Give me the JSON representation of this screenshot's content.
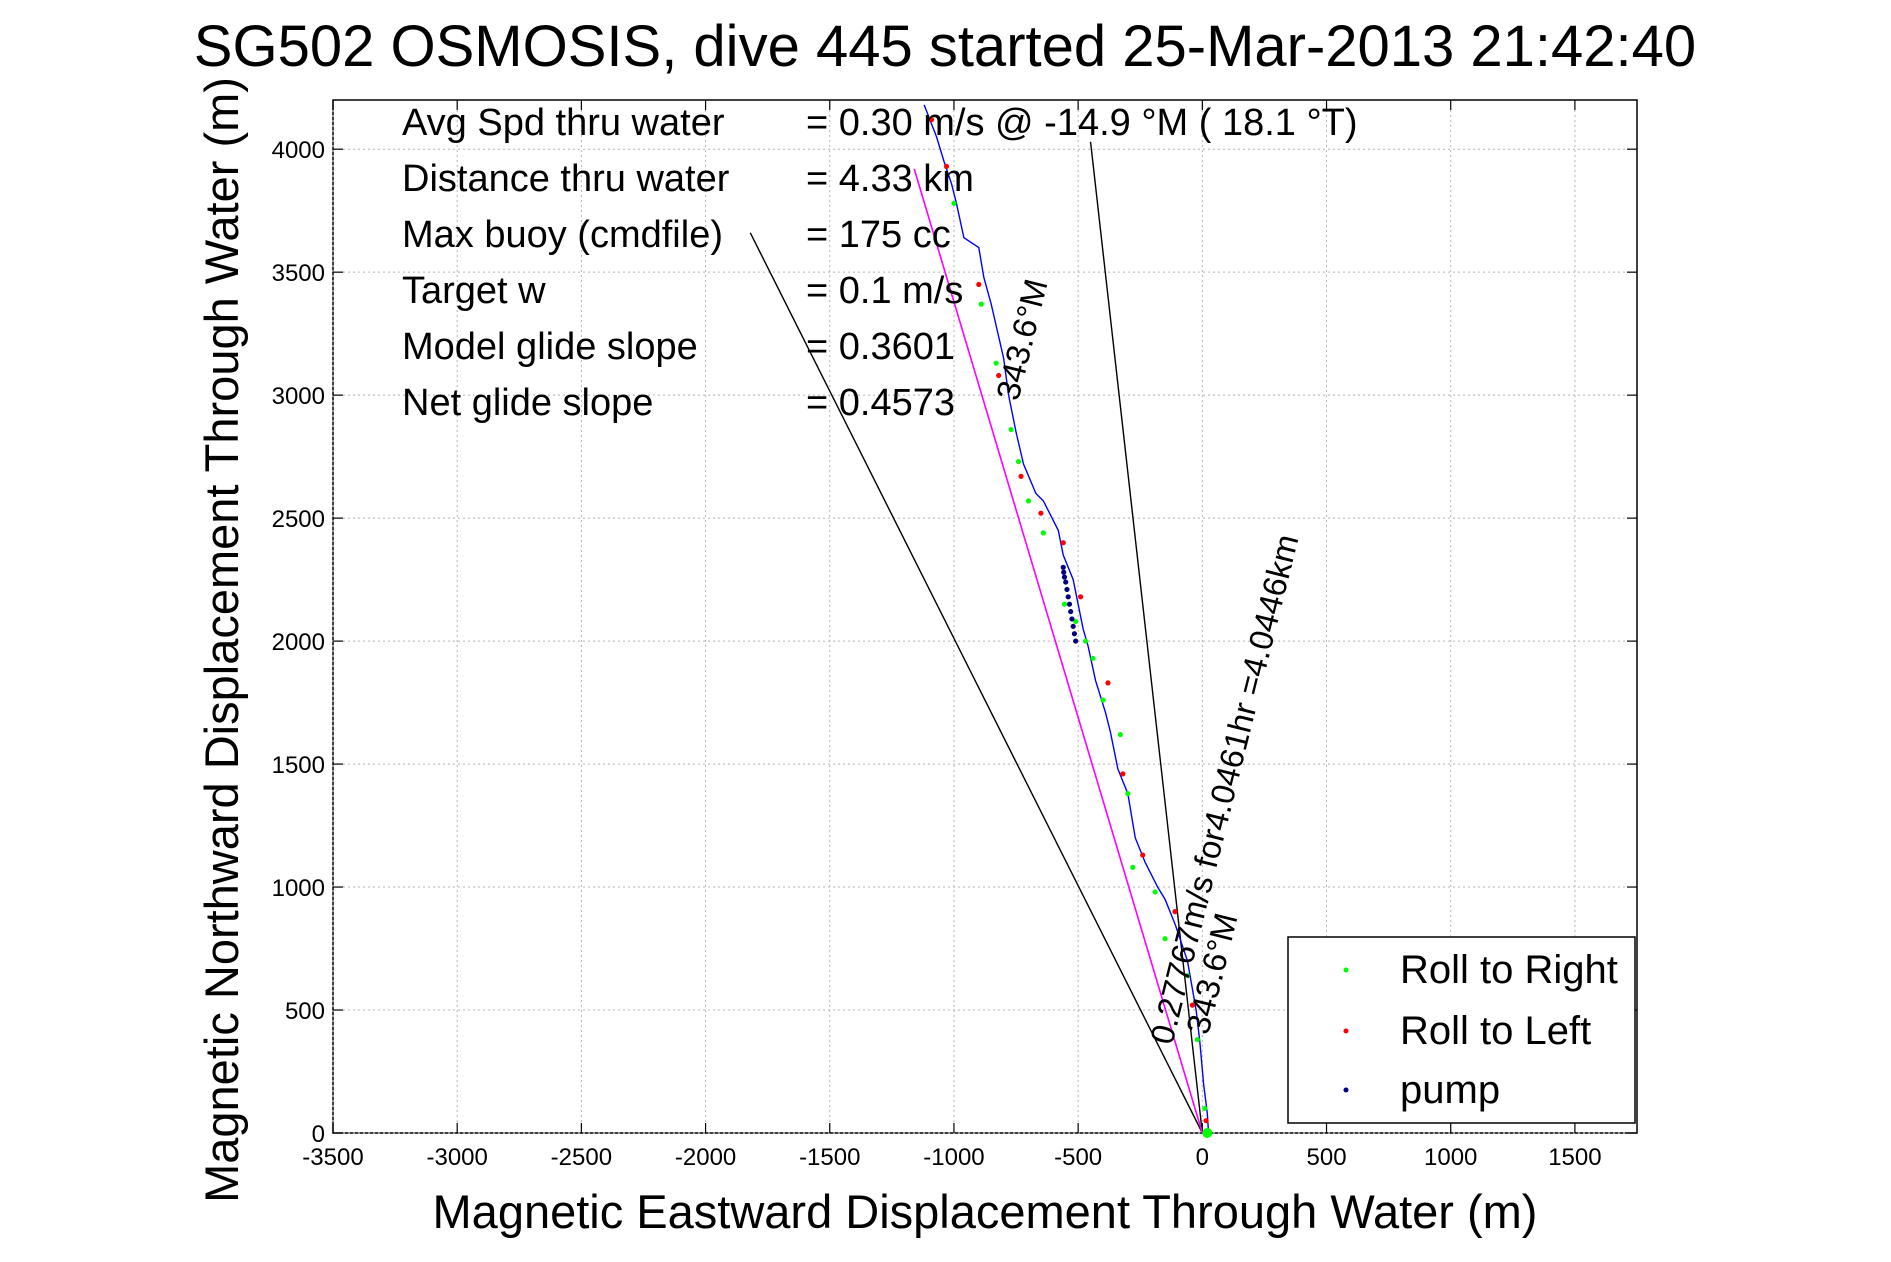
{
  "chart_data": {
    "type": "line",
    "title": "SG502 OSMOSIS, dive 445 started 25-Mar-2013 21:42:40",
    "xlabel": "Magnetic Eastward Displacement Through Water (m)",
    "ylabel": "Magnetic Northward Displacement Through Water (m)",
    "xlim": [
      -3500,
      1750
    ],
    "ylim": [
      0,
      4200
    ],
    "xticks": [
      -3500,
      -3000,
      -2500,
      -2000,
      -1500,
      -1000,
      -500,
      0,
      500,
      1000,
      1500
    ],
    "yticks": [
      0,
      500,
      1000,
      1500,
      2000,
      2500,
      3000,
      3500,
      4000
    ],
    "grid": true,
    "legend_position": "bottom-right",
    "info_rows": [
      {
        "label": "Avg Spd thru water",
        "value": "=  0.30 m/s @ -14.9 °M ( 18.1 °T)"
      },
      {
        "label": "Distance thru water",
        "value": "=  4.33 km"
      },
      {
        "label": "Max buoy (cmdfile)",
        "value": "= 175 cc"
      },
      {
        "label": "Target w",
        "value": "= 0.1 m/s"
      },
      {
        "label": "Model glide slope",
        "value": "= 0.3601"
      },
      {
        "label": "Net glide slope",
        "value": "= 0.4573"
      }
    ],
    "annotations": [
      "343.6°M",
      "0.27767m/s for4.0461hr =4.0446km",
      "343.6°M"
    ],
    "track": {
      "color": "#0000ff",
      "x": [
        25,
        20,
        5,
        -10,
        -25,
        -60,
        -110,
        -150,
        -180,
        -230,
        -270,
        -300,
        -340,
        -370,
        -390,
        -430,
        -460,
        -480,
        -500,
        -520,
        -560,
        -580,
        -620,
        -640,
        -670,
        -720,
        -750,
        -780,
        -800,
        -850,
        -880,
        -900,
        -960,
        -990,
        -1010,
        -1040,
        -1070,
        -1120
      ],
      "y": [
        0,
        80,
        200,
        370,
        500,
        700,
        850,
        950,
        1000,
        1100,
        1200,
        1380,
        1480,
        1630,
        1710,
        1840,
        1980,
        2050,
        2150,
        2250,
        2350,
        2450,
        2530,
        2570,
        2600,
        2720,
        2850,
        3000,
        3150,
        3370,
        3480,
        3600,
        3640,
        3780,
        3860,
        3950,
        4050,
        4180
      ]
    },
    "magenta_line": {
      "color": "#ff00ff",
      "x": [
        0,
        -1160
      ],
      "y": [
        0,
        3920
      ]
    },
    "series": [
      {
        "name": "Roll to Right",
        "color": "#00ff00",
        "x": [
          25,
          10,
          -20,
          -60,
          -150,
          -190,
          -280,
          -300,
          -330,
          -400,
          -440,
          -470,
          -510,
          -555,
          -640,
          -700,
          -740,
          -770,
          -830,
          -890,
          -1000
        ],
        "y": [
          0,
          100,
          380,
          640,
          790,
          980,
          1080,
          1380,
          1620,
          1760,
          1930,
          2000,
          2080,
          2150,
          2440,
          2570,
          2730,
          2860,
          3130,
          3370,
          3780
        ]
      },
      {
        "name": "Roll to Left",
        "color": "#ff0000",
        "x": [
          15,
          -40,
          -110,
          -240,
          -320,
          -380,
          -490,
          -560,
          -650,
          -730,
          -820,
          -900,
          -1030,
          -1090
        ],
        "y": [
          50,
          520,
          900,
          1130,
          1460,
          1830,
          2180,
          2400,
          2520,
          2670,
          3080,
          3450,
          3930,
          4120
        ]
      },
      {
        "name": "pump",
        "color": "#000080",
        "x": [
          -510,
          -515,
          -520,
          -525,
          -530,
          -535,
          -540,
          -545,
          -550,
          -555,
          -558,
          -560
        ],
        "y": [
          2000,
          2030,
          2060,
          2090,
          2120,
          2150,
          2180,
          2210,
          2240,
          2260,
          2280,
          2300
        ]
      }
    ],
    "black_lines": [
      {
        "x": [
          0,
          -1820
        ],
        "y": [
          0,
          3660
        ]
      },
      {
        "x": [
          0,
          -450
        ],
        "y": [
          0,
          4030
        ]
      }
    ]
  }
}
